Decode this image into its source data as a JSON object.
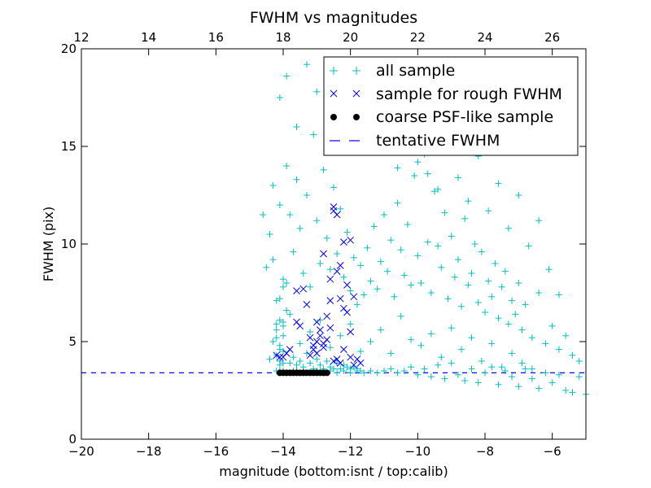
{
  "chart_data": {
    "type": "scatter",
    "title": "FWHM vs magnitudes",
    "xlabel": "magnitude (bottom:isnt / top:calib)",
    "ylabel": "FWHM (pix)",
    "xlim": [
      -20,
      -5
    ],
    "ylim": [
      0,
      20
    ],
    "x_ticks": [
      "−20",
      "−18",
      "−16",
      "−14",
      "−12",
      "−10",
      "−8",
      "−6"
    ],
    "y_ticks": [
      "0",
      "5",
      "10",
      "15",
      "20"
    ],
    "top_axis": {
      "offset": 32,
      "ticks": [
        "12",
        "14",
        "16",
        "18",
        "20",
        "22",
        "24",
        "26"
      ]
    },
    "grid": false,
    "legend_position": "top-right",
    "colors": {
      "all_sample": "#00bfbf",
      "rough_sample": "#0000ff",
      "psf_sample": "#000000",
      "tentative_fwhm": "#0000ff"
    },
    "series": [
      {
        "name": "all sample",
        "marker": "plus",
        "x": [
          -14.5,
          -14.4,
          -14.3,
          -14.2,
          -14.1,
          -14.0,
          -13.9,
          -13.8,
          -13.7,
          -13.6,
          -13.5,
          -13.4,
          -13.3,
          -13.2,
          -13.1,
          -13.0,
          -12.9,
          -12.8,
          -12.7,
          -12.6,
          -12.5,
          -12.4,
          -12.3,
          -12.2,
          -12.1,
          -12.0,
          -11.9,
          -11.8,
          -11.7,
          -11.6,
          -11.5,
          -11.4,
          -11.3,
          -11.2,
          -11.1,
          -11.0,
          -10.9,
          -10.8,
          -10.7,
          -10.6,
          -10.5,
          -10.4,
          -10.3,
          -10.2,
          -10.1,
          -10.0,
          -9.9,
          -9.8,
          -9.7,
          -9.6,
          -9.5,
          -9.4,
          -9.3,
          -9.2,
          -9.1,
          -9.0,
          -8.9,
          -8.8,
          -8.7,
          -8.6,
          -8.5,
          -8.4,
          -8.3,
          -8.2,
          -8.1,
          -8.0,
          -7.9,
          -7.8,
          -7.7,
          -7.6,
          -7.5,
          -7.4,
          -7.3,
          -7.2,
          -7.1,
          -7.0,
          -6.9,
          -6.8,
          -6.6,
          -6.4,
          -6.2,
          -6.0,
          -5.8,
          -5.6,
          -5.4,
          -5.2,
          -14.6,
          -14.3,
          -14.1,
          -13.9,
          -13.6,
          -13.3,
          -13.0,
          -12.7,
          -12.4,
          -12.1,
          -11.8,
          -11.5,
          -11.2,
          -10.9,
          -10.6,
          -10.3,
          -10.0,
          -9.7,
          -9.4,
          -9.1,
          -8.8,
          -8.5,
          -8.2,
          -7.9,
          -7.6,
          -7.3,
          -7.0,
          -6.7,
          -6.4,
          -6.1,
          -5.8,
          -14.2,
          -14.0,
          -13.8,
          -13.5,
          -13.2,
          -12.9,
          -12.6,
          -12.3,
          -12.0,
          -11.7,
          -11.4,
          -11.1,
          -10.8,
          -10.5,
          -10.2,
          -9.9,
          -9.6,
          -9.3,
          -9.0,
          -8.7,
          -8.4,
          -8.1,
          -7.8,
          -7.5,
          -7.2,
          -6.9,
          -6.6,
          -14.2,
          -14.1,
          -14.0,
          -13.9,
          -13.8,
          -13.7,
          -13.6,
          -13.5,
          -13.4,
          -13.2,
          -13.0,
          -12.8,
          -12.6,
          -12.4,
          -12.2,
          -12.0,
          -11.8,
          -11.6,
          -11.4,
          -11.2,
          -11.0,
          -10.8,
          -10.6,
          -10.4,
          -10.2,
          -10.0,
          -9.8,
          -9.6,
          -9.4,
          -9.2,
          -9.0,
          -8.8,
          -8.6,
          -8.4,
          -8.2,
          -8.0,
          -7.8,
          -7.6,
          -7.4,
          -7.2,
          -7.0,
          -6.8,
          -6.6,
          -6.4,
          -6.2,
          -6.0,
          -5.8,
          -5.6,
          -5.4,
          -5.2,
          -5.0,
          -14.1,
          -14.1,
          -14.0,
          -14.0,
          -14.1,
          -13.9,
          -14.0,
          -14.1,
          -14.2,
          -13.9,
          -14.0,
          -14.1,
          -14.2,
          -14.3,
          -14.1,
          -14.4,
          -14.0,
          -14.2,
          -13.8,
          -13.7,
          -13.6,
          -13.5,
          -13.4,
          -13.3,
          -13.2,
          -13.1,
          -13.0,
          -12.9,
          -12.8,
          -12.7,
          -12.6,
          -12.5,
          -12.4,
          -12.3,
          -12.2,
          -12.1,
          -12.0,
          -11.9,
          -11.8,
          -11.7
        ],
        "y": [
          8.8,
          10.5,
          9.2,
          7.1,
          12.0,
          8.2,
          14.0,
          11.5,
          9.6,
          13.3,
          10.8,
          8.5,
          12.5,
          7.8,
          15.6,
          11.2,
          9.0,
          13.8,
          10.3,
          8.7,
          12.9,
          9.5,
          11.8,
          8.3,
          10.6,
          7.6,
          9.3,
          6.9,
          8.9,
          7.4,
          9.8,
          8.1,
          10.9,
          7.7,
          9.1,
          11.5,
          8.6,
          10.2,
          7.3,
          12.1,
          9.7,
          8.4,
          11.0,
          7.9,
          13.5,
          9.4,
          8.0,
          14.6,
          10.1,
          7.5,
          12.7,
          9.9,
          8.8,
          11.6,
          7.2,
          10.4,
          8.3,
          9.2,
          6.8,
          11.3,
          7.9,
          8.5,
          10.0,
          7.0,
          9.6,
          6.5,
          8.1,
          7.3,
          9.0,
          6.2,
          7.8,
          8.6,
          5.9,
          7.1,
          6.4,
          8.0,
          5.6,
          6.9,
          5.2,
          7.5,
          4.9,
          5.8,
          4.6,
          5.3,
          4.3,
          4.0,
          11.5,
          13.0,
          17.5,
          18.6,
          16.0,
          19.2,
          17.8,
          15.5,
          18.8,
          16.9,
          15.2,
          17.3,
          14.8,
          16.5,
          13.9,
          15.8,
          14.2,
          13.6,
          12.8,
          15.1,
          13.4,
          12.2,
          14.5,
          11.7,
          13.1,
          10.8,
          12.5,
          9.9,
          11.2,
          8.7,
          7.4,
          5.2,
          5.8,
          6.4,
          4.9,
          5.5,
          6.1,
          4.7,
          5.3,
          5.9,
          4.5,
          5.0,
          5.6,
          4.4,
          6.3,
          5.1,
          4.8,
          5.4,
          4.2,
          5.7,
          4.6,
          5.2,
          4.0,
          4.9,
          3.7,
          4.4,
          3.9,
          3.6,
          3.5,
          3.5,
          3.5,
          3.4,
          3.4,
          3.5,
          3.5,
          3.4,
          3.5,
          3.4,
          3.5,
          3.4,
          3.5,
          3.4,
          3.5,
          3.4,
          3.5,
          3.4,
          3.5,
          3.4,
          3.5,
          3.6,
          3.4,
          3.5,
          3.7,
          3.3,
          3.6,
          3.2,
          3.8,
          3.1,
          3.9,
          3.3,
          3.0,
          3.6,
          2.9,
          3.4,
          3.7,
          2.8,
          3.5,
          3.2,
          2.7,
          3.6,
          3.1,
          2.6,
          3.4,
          2.9,
          3.3,
          2.5,
          2.4,
          3.2,
          2.3,
          4.0,
          4.6,
          5.3,
          6.0,
          7.2,
          8.0,
          3.9,
          4.8,
          5.6,
          6.6,
          7.8,
          3.8,
          4.3,
          5.0,
          6.1,
          4.1,
          4.5,
          5.9,
          3.9,
          4.2,
          3.8,
          4.0,
          3.7,
          4.4,
          3.9,
          3.6,
          4.1,
          3.8,
          3.6,
          4.0,
          3.7,
          3.6,
          3.9,
          3.6,
          3.8,
          3.7,
          3.6,
          3.7,
          3.6,
          3.5
        ]
      },
      {
        "name": "sample for rough FWHM",
        "marker": "x",
        "x": [
          -14.2,
          -14.0,
          -13.8,
          -13.6,
          -13.4,
          -13.3,
          -13.2,
          -13.1,
          -13.0,
          -12.9,
          -12.8,
          -12.7,
          -12.6,
          -12.5,
          -12.4,
          -12.3,
          -12.2,
          -12.1,
          -12.0,
          -11.9,
          -12.5,
          -12.4,
          -12.8,
          -12.6,
          -12.3,
          -12.1,
          -12.9,
          -12.7,
          -12.2,
          -13.1,
          -13.0,
          -12.4,
          -12.0,
          -13.2,
          -12.8,
          -12.5,
          -12.3,
          -11.9,
          -13.6,
          -12.6,
          -13.9,
          -14.1,
          -13.5,
          -13.0,
          -12.2,
          -12.0,
          -11.8,
          -11.7
        ],
        "y": [
          4.3,
          4.2,
          4.6,
          7.6,
          7.7,
          6.9,
          5.2,
          4.8,
          6.0,
          5.3,
          4.9,
          6.3,
          5.7,
          11.9,
          11.5,
          8.9,
          6.7,
          7.9,
          10.2,
          7.3,
          11.7,
          8.6,
          9.5,
          8.2,
          7.2,
          6.5,
          5.6,
          5.1,
          10.1,
          4.6,
          4.4,
          4.1,
          5.5,
          4.3,
          4.7,
          4.0,
          3.9,
          3.8,
          6.0,
          7.1,
          4.4,
          4.2,
          5.8,
          5.0,
          4.6,
          4.2,
          4.1,
          3.9
        ]
      },
      {
        "name": "coarse PSF-like sample",
        "marker": "dot",
        "x": [
          -14.1,
          -14.0,
          -13.9,
          -13.8,
          -13.7,
          -13.6,
          -13.5,
          -13.4,
          -13.3,
          -13.2,
          -13.1,
          -13.0,
          -12.9,
          -12.8,
          -12.7
        ],
        "y": [
          3.4,
          3.4,
          3.4,
          3.4,
          3.4,
          3.4,
          3.4,
          3.4,
          3.4,
          3.4,
          3.4,
          3.4,
          3.4,
          3.4,
          3.4
        ]
      },
      {
        "name": "tentative FWHM",
        "marker": "dashed-line",
        "y_value": 3.4
      }
    ],
    "legend": [
      "all sample",
      "sample for rough FWHM",
      "coarse PSF-like sample",
      "tentative FWHM"
    ]
  }
}
